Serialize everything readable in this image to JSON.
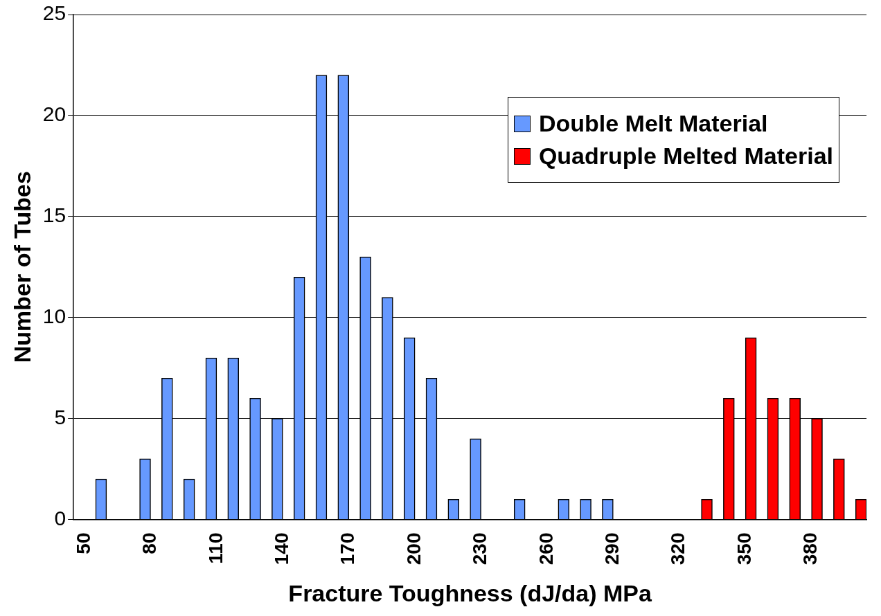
{
  "chart_data": {
    "type": "bar",
    "xlabel": "Fracture Toughness (dJ/da) MPa",
    "ylabel": "Number of Tubes",
    "categories": [
      "50",
      null,
      null,
      "80",
      null,
      null,
      "110",
      null,
      null,
      "140",
      null,
      null,
      "170",
      null,
      null,
      "200",
      null,
      null,
      "230",
      null,
      null,
      "260",
      null,
      null,
      "290",
      null,
      null,
      "320",
      null,
      null,
      "350",
      null,
      null,
      "380",
      null,
      null
    ],
    "series": [
      {
        "name": "Double Melt Material",
        "color": "#6699ff",
        "values": [
          null,
          2,
          null,
          3,
          7,
          2,
          8,
          8,
          6,
          5,
          12,
          22,
          22,
          13,
          11,
          9,
          7,
          1,
          4,
          null,
          1,
          null,
          1,
          1,
          1,
          null,
          null,
          null,
          null,
          null,
          null,
          null,
          null,
          null,
          null,
          null
        ]
      },
      {
        "name": "Quadruple Melted Material",
        "color": "#ff0000",
        "values": [
          null,
          null,
          null,
          null,
          null,
          null,
          null,
          null,
          null,
          null,
          null,
          null,
          null,
          null,
          null,
          null,
          null,
          null,
          null,
          null,
          null,
          null,
          null,
          null,
          null,
          null,
          null,
          null,
          1,
          6,
          9,
          6,
          6,
          5,
          3,
          1
        ]
      }
    ],
    "ylim": [
      0,
      25
    ],
    "yticks": [
      0,
      5,
      10,
      15,
      20,
      25
    ],
    "grid": "y",
    "legend": "top right"
  }
}
